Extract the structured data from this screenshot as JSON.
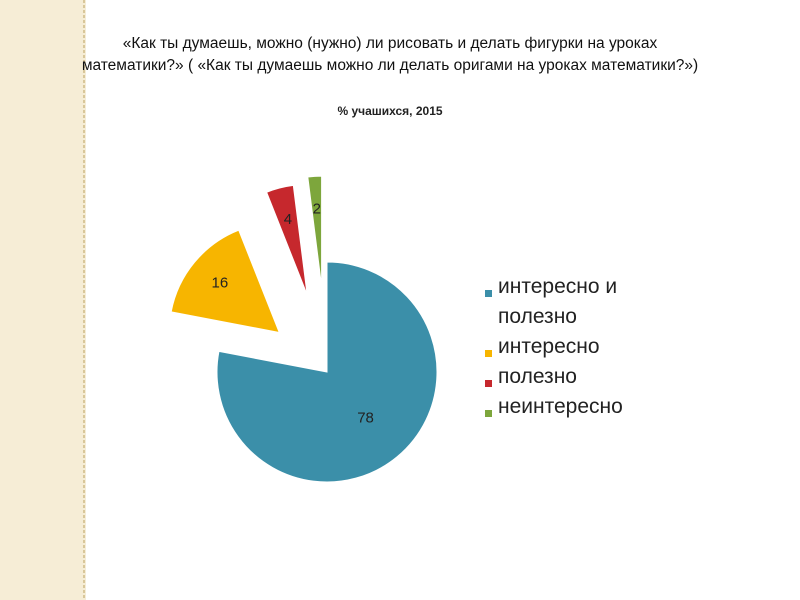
{
  "chart_data": {
    "type": "pie",
    "title": "«Как ты думаешь, можно (нужно) ли рисовать и делать фигурки на уроках математики?» ( «Как ты думаешь  можно ли делать оригами на уроках математики?»)",
    "subtitle": "% учашихся, 2015",
    "categories": [
      "интересно и полезно",
      "интересно",
      "полезно",
      "неинтересно"
    ],
    "values": [
      78,
      16,
      4,
      2
    ],
    "colors": [
      "#3b8fa9",
      "#f7b500",
      "#c6282d",
      "#7da63c"
    ],
    "legend": "right"
  }
}
